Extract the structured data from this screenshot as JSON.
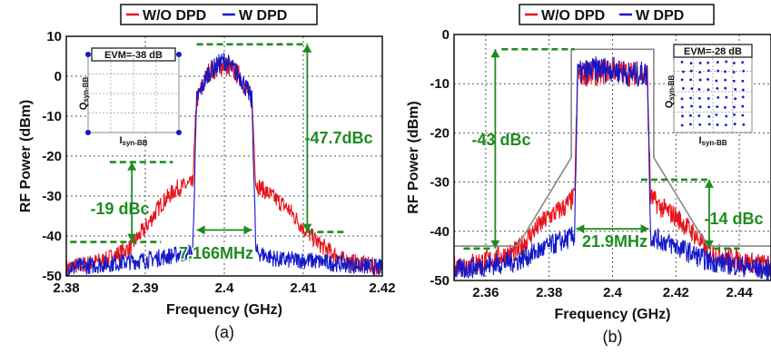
{
  "chart_data": [
    {
      "type": "line",
      "caption": "(a)",
      "xlabel": "Frequency (GHz)",
      "ylabel": "RF Power (dBm)",
      "xlim": [
        2.38,
        2.42
      ],
      "ylim": [
        -50,
        10
      ],
      "xticks": [
        2.38,
        2.39,
        2.4,
        2.41,
        2.42
      ],
      "xtick_labels": [
        "2.38",
        "2.39",
        "2.4",
        "2.41",
        "2.42"
      ],
      "yticks": [
        -50,
        -40,
        -30,
        -20,
        -10,
        0,
        10
      ],
      "ytick_labels": [
        "-50",
        "-40",
        "-30",
        "-20",
        "-10",
        "0",
        "10"
      ],
      "grid": true,
      "legend": {
        "placement": "top",
        "entries": [
          "W/O DPD",
          "W DPD"
        ]
      },
      "series": [
        {
          "name": "W/O DPD",
          "color": "#e8141c",
          "x": [
            2.38,
            2.385,
            2.388,
            2.39,
            2.392,
            2.394,
            2.396,
            2.3965,
            2.398,
            2.4,
            2.402,
            2.4035,
            2.404,
            2.406,
            2.408,
            2.41,
            2.412,
            2.415,
            2.42
          ],
          "y": [
            -48,
            -46,
            -43,
            -38,
            -32,
            -28,
            -27,
            -6,
            1,
            3,
            0,
            -6,
            -27,
            -30,
            -33,
            -38,
            -42,
            -46,
            -48
          ]
        },
        {
          "name": "W DPD",
          "color": "#1418c8",
          "x": [
            2.38,
            2.385,
            2.39,
            2.393,
            2.396,
            2.3965,
            2.398,
            2.4,
            2.402,
            2.4035,
            2.404,
            2.407,
            2.41,
            2.415,
            2.42
          ],
          "y": [
            -48,
            -47,
            -46,
            -45,
            -44,
            -6,
            1,
            4,
            0,
            -6,
            -44,
            -46,
            -46,
            -47,
            -48
          ]
        }
      ],
      "annotations": [
        {
          "text": "-47.7dBc",
          "color": "#1e8c1e"
        },
        {
          "text": "-19 dBc",
          "color": "#1e8c1e"
        },
        {
          "text": "7.166MHz",
          "color": "#1e8c1e"
        }
      ],
      "inset": {
        "title": "EVM=-38 dB",
        "x_label_main": "I",
        "x_label_sub": "syn-BB",
        "y_label_main": "Q",
        "y_label_sub": "syn-BB",
        "points": [
          [
            -1,
            -1
          ],
          [
            -1,
            1
          ],
          [
            1,
            -1
          ],
          [
            1,
            1
          ]
        ]
      }
    },
    {
      "type": "line",
      "caption": "(b)",
      "xlabel": "Frequency (GHz)",
      "ylabel": "RF Power (dBm)",
      "xlim": [
        2.35,
        2.45
      ],
      "ylim": [
        -50,
        0
      ],
      "xticks": [
        2.36,
        2.38,
        2.4,
        2.42,
        2.44
      ],
      "xtick_labels": [
        "2.36",
        "2.38",
        "2.4",
        "2.42",
        "2.44"
      ],
      "yticks": [
        -50,
        -40,
        -30,
        -20,
        -10,
        0
      ],
      "ytick_labels": [
        "-50",
        "-40",
        "-30",
        "-20",
        "-10",
        "0"
      ],
      "grid": true,
      "legend": {
        "placement": "top",
        "entries": [
          "W/O DPD",
          "W DPD"
        ]
      },
      "series": [
        {
          "name": "W/O DPD",
          "color": "#e8141c",
          "x": [
            2.35,
            2.36,
            2.37,
            2.375,
            2.38,
            2.385,
            2.388,
            2.389,
            2.395,
            2.4,
            2.405,
            2.411,
            2.412,
            2.415,
            2.42,
            2.425,
            2.43,
            2.44,
            2.45
          ],
          "y": [
            -47,
            -46,
            -44,
            -40,
            -37,
            -35,
            -33,
            -8,
            -8,
            -7,
            -8,
            -8,
            -33,
            -35,
            -37,
            -40,
            -44,
            -46,
            -47
          ]
        },
        {
          "name": "W DPD",
          "color": "#1418c8",
          "x": [
            2.35,
            2.36,
            2.37,
            2.38,
            2.388,
            2.389,
            2.395,
            2.4,
            2.405,
            2.411,
            2.412,
            2.42,
            2.43,
            2.44,
            2.45
          ],
          "y": [
            -48,
            -47,
            -46,
            -43,
            -41,
            -8,
            -7,
            -7,
            -8,
            -8,
            -41,
            -43,
            -46,
            -47,
            -48
          ]
        },
        {
          "name": "mask",
          "color": "#888888",
          "x": [
            2.35,
            2.37,
            2.387,
            2.387,
            2.413,
            2.413,
            2.43,
            2.45
          ],
          "y": [
            -43,
            -43,
            -25,
            -3,
            -3,
            -25,
            -43,
            -43
          ]
        }
      ],
      "annotations": [
        {
          "text": "-43 dBc",
          "color": "#1e8c1e"
        },
        {
          "text": "-14 dBc",
          "color": "#1e8c1e"
        },
        {
          "text": "21.9MHz",
          "color": "#1e8c1e"
        }
      ],
      "inset": {
        "title": "EVM=-28 dB",
        "x_label_main": "I",
        "x_label_sub": "syn-BB",
        "y_label_main": "Q",
        "y_label_sub": "syn-BB",
        "points_grid": 8
      }
    }
  ]
}
